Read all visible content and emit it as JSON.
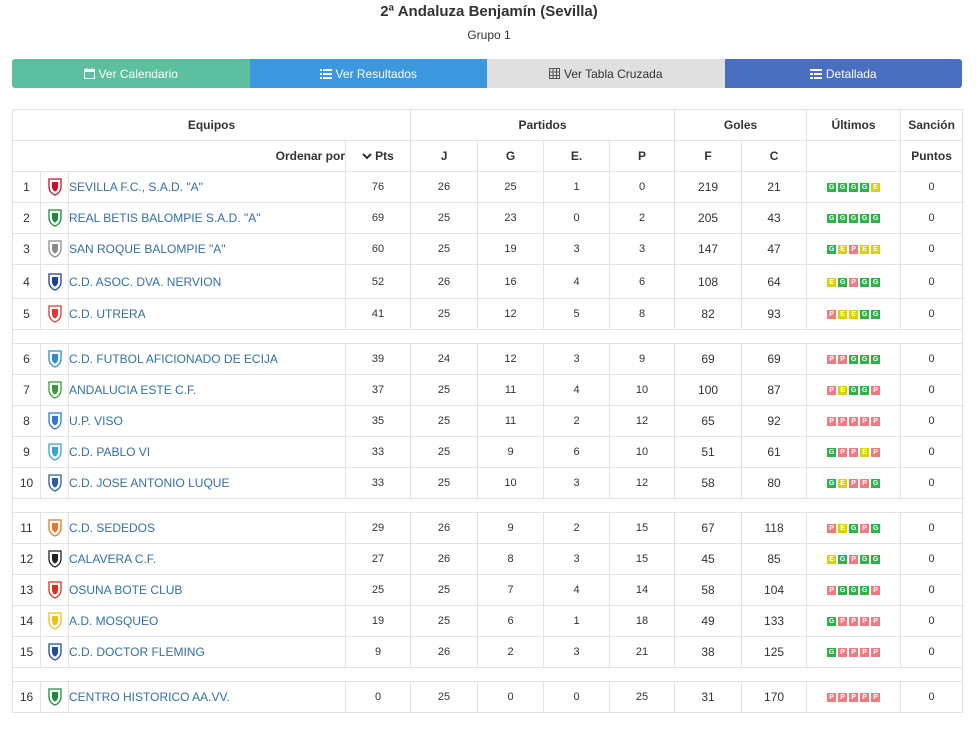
{
  "header": {
    "title": "2ª Andaluza Benjamín (Sevilla)",
    "subtitle": "Grupo 1"
  },
  "tabs": [
    {
      "label": "Ver Calendario",
      "icon": "calendar-icon"
    },
    {
      "label": "Ver Resultados",
      "icon": "list-icon"
    },
    {
      "label": "Ver Tabla Cruzada",
      "icon": "grid-icon"
    },
    {
      "label": "Detallada",
      "icon": "detailed-list-icon"
    }
  ],
  "table": {
    "group_headers": {
      "teams": "Equipos",
      "matches": "Partidos",
      "goals": "Goles",
      "last": "Últimos",
      "sanction": "Sanción"
    },
    "col_headers": {
      "order_by": "Ordenar por",
      "pts": "Pts",
      "j": "J",
      "g": "G",
      "e": "E.",
      "p": "P",
      "f": "F",
      "c": "C",
      "points": "Puntos"
    },
    "colors": {
      "win": "#2cb34a",
      "draw": "#d9d400",
      "loss": "#f07a80",
      "link": "#336fa9"
    },
    "rows": [
      {
        "pos": "1",
        "team": "SEVILLA F.C., S.A.D. \"A\"",
        "pts": "76",
        "j": "26",
        "g": "25",
        "e": "1",
        "p": "0",
        "f": "219",
        "c": "21",
        "last": [
          "G",
          "G",
          "G",
          "G",
          "E"
        ],
        "sanc": "0",
        "crest": "#c8102e"
      },
      {
        "pos": "2",
        "team": "REAL BETIS BALOMPIE S.A.D. \"A\"",
        "pts": "69",
        "j": "25",
        "g": "23",
        "e": "0",
        "p": "2",
        "f": "205",
        "c": "43",
        "last": [
          "G",
          "G",
          "G",
          "G",
          "G"
        ],
        "sanc": "0",
        "crest": "#1b8a3a"
      },
      {
        "pos": "3",
        "team": "SAN ROQUE BALOMPIE \"A\"",
        "pts": "60",
        "j": "25",
        "g": "19",
        "e": "3",
        "p": "3",
        "f": "147",
        "c": "47",
        "last": [
          "G",
          "E",
          "P",
          "E",
          "E"
        ],
        "sanc": "0",
        "crest": "#8a8a8a"
      },
      {
        "pos": "4",
        "team": "C.D. ASOC. DVA. NERVION",
        "pts": "52",
        "j": "26",
        "g": "16",
        "e": "4",
        "p": "6",
        "f": "108",
        "c": "64",
        "last": [
          "E",
          "G",
          "P",
          "G",
          "G"
        ],
        "sanc": "0",
        "crest": "#1f3f95"
      },
      {
        "pos": "5",
        "team": "C.D. UTRERA",
        "pts": "41",
        "j": "25",
        "g": "12",
        "e": "5",
        "p": "8",
        "f": "82",
        "c": "93",
        "last": [
          "P",
          "E",
          "E",
          "G",
          "G"
        ],
        "sanc": "0",
        "crest": "#d63a3a"
      },
      {
        "pos": "6",
        "team": "C.D. FUTBOL AFICIONADO DE ECIJA",
        "pts": "39",
        "j": "24",
        "g": "12",
        "e": "3",
        "p": "9",
        "f": "69",
        "c": "69",
        "last": [
          "P",
          "P",
          "G",
          "G",
          "G"
        ],
        "sanc": "0",
        "crest": "#2a8ad4"
      },
      {
        "pos": "7",
        "team": "ANDALUCIA ESTE C.F.",
        "pts": "37",
        "j": "25",
        "g": "11",
        "e": "4",
        "p": "10",
        "f": "100",
        "c": "87",
        "last": [
          "P",
          "E",
          "G",
          "G",
          "P"
        ],
        "sanc": "0",
        "crest": "#3a9a3a"
      },
      {
        "pos": "8",
        "team": "U.P. VISO",
        "pts": "35",
        "j": "25",
        "g": "11",
        "e": "2",
        "p": "12",
        "f": "65",
        "c": "92",
        "last": [
          "P",
          "P",
          "P",
          "P",
          "P"
        ],
        "sanc": "0",
        "crest": "#2f7ad0"
      },
      {
        "pos": "9",
        "team": "C.D. PABLO VI",
        "pts": "33",
        "j": "25",
        "g": "9",
        "e": "6",
        "p": "10",
        "f": "51",
        "c": "61",
        "last": [
          "G",
          "P",
          "P",
          "E",
          "P"
        ],
        "sanc": "0",
        "crest": "#3aa0d8"
      },
      {
        "pos": "10",
        "team": "C.D. JOSE ANTONIO LUQUE",
        "pts": "33",
        "j": "25",
        "g": "10",
        "e": "3",
        "p": "12",
        "f": "58",
        "c": "80",
        "last": [
          "G",
          "E",
          "P",
          "P",
          "G"
        ],
        "sanc": "0",
        "crest": "#2a5ca8"
      },
      {
        "pos": "11",
        "team": "C.D. SEDEDOS",
        "pts": "29",
        "j": "26",
        "g": "9",
        "e": "2",
        "p": "15",
        "f": "67",
        "c": "118",
        "last": [
          "P",
          "E",
          "G",
          "P",
          "G"
        ],
        "sanc": "0",
        "crest": "#e07a2a"
      },
      {
        "pos": "12",
        "team": "CALAVERA C.F.",
        "pts": "27",
        "j": "26",
        "g": "8",
        "e": "3",
        "p": "15",
        "f": "45",
        "c": "85",
        "last": [
          "E",
          "G",
          "P",
          "G",
          "G"
        ],
        "sanc": "0",
        "crest": "#222222"
      },
      {
        "pos": "13",
        "team": "OSUNA BOTE CLUB",
        "pts": "25",
        "j": "25",
        "g": "7",
        "e": "4",
        "p": "14",
        "f": "58",
        "c": "104",
        "last": [
          "P",
          "G",
          "G",
          "G",
          "P"
        ],
        "sanc": "0",
        "crest": "#d6301e"
      },
      {
        "pos": "14",
        "team": "A.D. MOSQUEO",
        "pts": "19",
        "j": "25",
        "g": "6",
        "e": "1",
        "p": "18",
        "f": "49",
        "c": "133",
        "last": [
          "G",
          "P",
          "P",
          "P",
          "P"
        ],
        "sanc": "0",
        "crest": "#e8c21a"
      },
      {
        "pos": "15",
        "team": "C.D. DOCTOR FLEMING",
        "pts": "9",
        "j": "26",
        "g": "2",
        "e": "3",
        "p": "21",
        "f": "38",
        "c": "125",
        "last": [
          "G",
          "P",
          "P",
          "P",
          "P"
        ],
        "sanc": "0",
        "crest": "#1f4c9a"
      },
      {
        "pos": "16",
        "team": "CENTRO HISTORICO AA.VV.",
        "pts": "0",
        "j": "25",
        "g": "0",
        "e": "0",
        "p": "25",
        "f": "31",
        "c": "170",
        "last": [
          "P",
          "P",
          "P",
          "P",
          "P"
        ],
        "sanc": "0",
        "crest": "#1e8a3c"
      }
    ],
    "gap_after": [
      5,
      10,
      15
    ]
  }
}
